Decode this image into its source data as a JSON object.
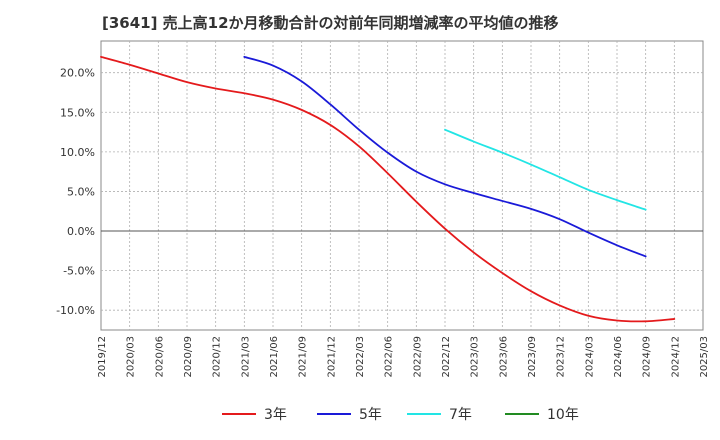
{
  "chart_data": {
    "type": "line",
    "title": "[3641]  売上高12か月移動合計の対前年同期増減率の平均値の推移",
    "xlabel": "",
    "ylabel": "",
    "ylim": [
      -12.5,
      24.0
    ],
    "x_ticks": [
      "2019/12",
      "2020/03",
      "2020/06",
      "2020/09",
      "2020/12",
      "2021/03",
      "2021/06",
      "2021/09",
      "2021/12",
      "2022/03",
      "2022/06",
      "2022/09",
      "2022/12",
      "2023/03",
      "2023/06",
      "2023/09",
      "2023/12",
      "2024/03",
      "2024/06",
      "2024/09",
      "2024/12",
      "2025/03"
    ],
    "y_ticks": [
      {
        "value": 20,
        "label": "20.0%"
      },
      {
        "value": 15,
        "label": "15.0%"
      },
      {
        "value": 10,
        "label": "10.0%"
      },
      {
        "value": 5,
        "label": "5.0%"
      },
      {
        "value": 0,
        "label": "0.0%"
      },
      {
        "value": -5,
        "label": "-5.0%"
      },
      {
        "value": -10,
        "label": "-10.0%"
      }
    ],
    "grid": true,
    "legend_position": "bottom",
    "series": [
      {
        "name": "3年",
        "color": "#e41a1c",
        "points": [
          [
            "2019/12",
            22.0
          ],
          [
            "2020/03",
            21.0
          ],
          [
            "2020/06",
            19.9
          ],
          [
            "2020/09",
            18.8
          ],
          [
            "2020/12",
            18.0
          ],
          [
            "2021/03",
            17.4
          ],
          [
            "2021/06",
            16.6
          ],
          [
            "2021/09",
            15.3
          ],
          [
            "2021/12",
            13.4
          ],
          [
            "2022/03",
            10.7
          ],
          [
            "2022/06",
            7.3
          ],
          [
            "2022/09",
            3.7
          ],
          [
            "2022/12",
            0.3
          ],
          [
            "2023/03",
            -2.7
          ],
          [
            "2023/06",
            -5.3
          ],
          [
            "2023/09",
            -7.6
          ],
          [
            "2023/12",
            -9.4
          ],
          [
            "2024/03",
            -10.7
          ],
          [
            "2024/06",
            -11.3
          ],
          [
            "2024/09",
            -11.4
          ],
          [
            "2024/12",
            -11.1
          ]
        ]
      },
      {
        "name": "5年",
        "color": "#1a1ad8",
        "points": [
          [
            "2021/03",
            22.0
          ],
          [
            "2021/06",
            20.9
          ],
          [
            "2021/09",
            18.9
          ],
          [
            "2021/12",
            16.0
          ],
          [
            "2022/03",
            12.8
          ],
          [
            "2022/06",
            9.9
          ],
          [
            "2022/09",
            7.5
          ],
          [
            "2022/12",
            5.9
          ],
          [
            "2023/03",
            4.8
          ],
          [
            "2023/06",
            3.8
          ],
          [
            "2023/09",
            2.8
          ],
          [
            "2023/12",
            1.5
          ],
          [
            "2024/03",
            -0.2
          ],
          [
            "2024/06",
            -1.8
          ],
          [
            "2024/09",
            -3.2
          ]
        ]
      },
      {
        "name": "7年",
        "color": "#22e5e5",
        "points": [
          [
            "2022/12",
            12.8
          ],
          [
            "2023/03",
            11.3
          ],
          [
            "2023/06",
            9.9
          ],
          [
            "2023/09",
            8.4
          ],
          [
            "2023/12",
            6.8
          ],
          [
            "2024/03",
            5.2
          ],
          [
            "2024/06",
            3.9
          ],
          [
            "2024/09",
            2.7
          ]
        ]
      },
      {
        "name": "10年",
        "color": "#228b22",
        "points": []
      }
    ]
  }
}
